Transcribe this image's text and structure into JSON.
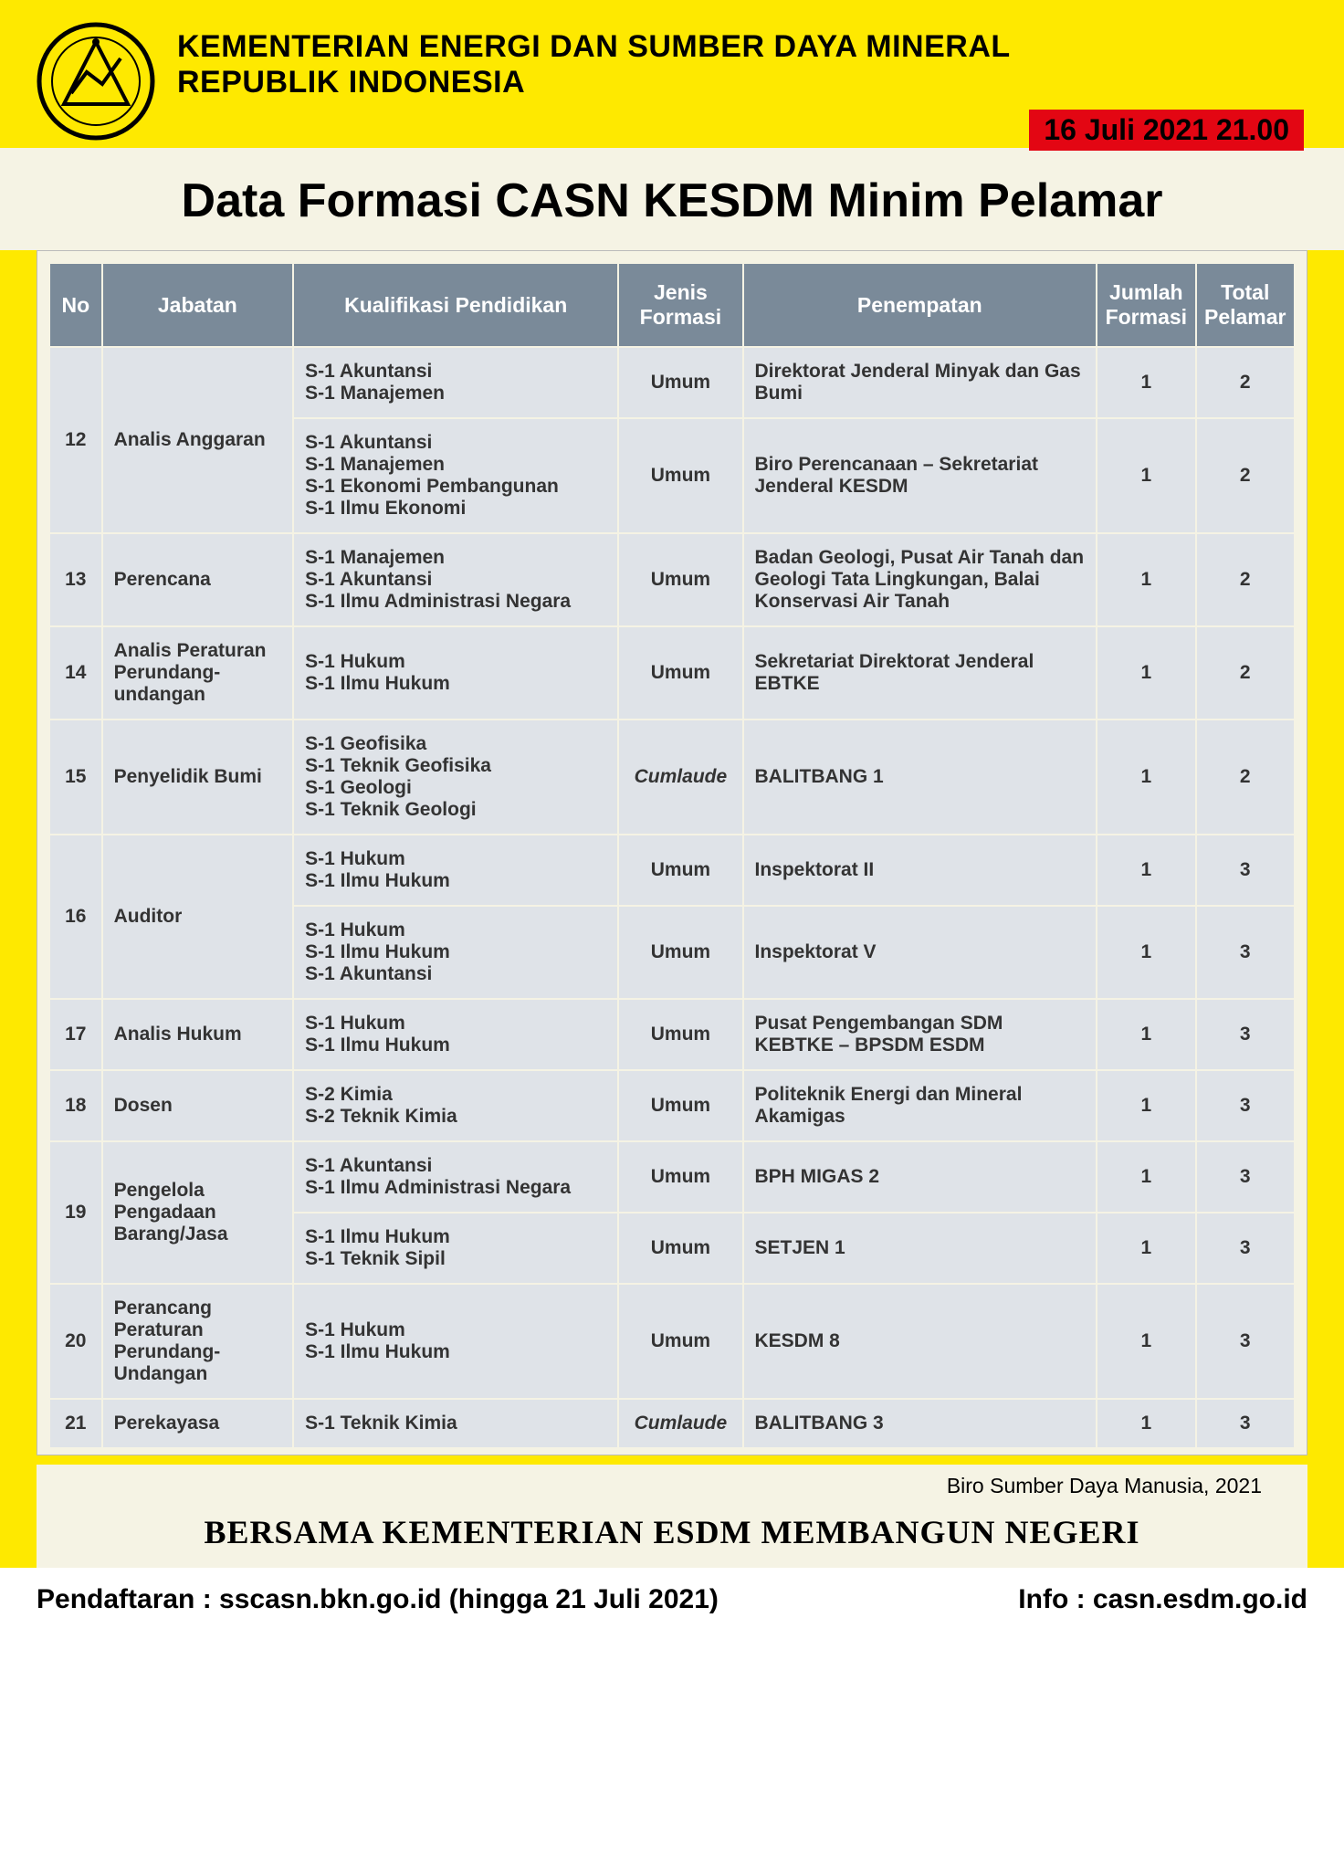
{
  "header": {
    "line1": "KEMENTERIAN ENERGI DAN SUMBER DAYA MINERAL",
    "line2": "REPUBLIK INDONESIA",
    "date_badge": "16 Juli 2021 21.00"
  },
  "title": "Data Formasi CASN KESDM Minim Pelamar",
  "table": {
    "columns": [
      "No",
      "Jabatan",
      "Kualifikasi Pendidikan",
      "Jenis Formasi",
      "Penempatan",
      "Jumlah Formasi",
      "Total Pelamar"
    ],
    "header_bg": "#7a8a99",
    "row_bg": "#dfe3e8",
    "rows": [
      {
        "no": "12",
        "no_rowspan": 2,
        "jabatan": "Analis Anggaran",
        "jab_rowspan": 2,
        "kual": "S-1 Akuntansi\nS-1 Manajemen",
        "jenis": "Umum",
        "jenis_italic": false,
        "pen": "Direktorat Jenderal Minyak dan Gas Bumi",
        "jml": "1",
        "tot": "2"
      },
      {
        "kual": "S-1 Akuntansi\nS-1 Manajemen\nS-1 Ekonomi Pembangunan\nS-1 Ilmu Ekonomi",
        "jenis": "Umum",
        "jenis_italic": false,
        "pen": "Biro Perencanaan – Sekretariat Jenderal KESDM",
        "jml": "1",
        "tot": "2"
      },
      {
        "no": "13",
        "jabatan": "Perencana",
        "kual": "S-1 Manajemen\nS-1 Akuntansi\nS-1 Ilmu Administrasi Negara",
        "jenis": "Umum",
        "jenis_italic": false,
        "pen": "Badan Geologi, Pusat Air Tanah dan Geologi Tata Lingkungan, Balai Konservasi Air Tanah",
        "jml": "1",
        "tot": "2"
      },
      {
        "no": "14",
        "jabatan": "Analis Peraturan Perundang-undangan",
        "kual": "S-1 Hukum\nS-1 Ilmu Hukum",
        "jenis": "Umum",
        "jenis_italic": false,
        "pen": "Sekretariat Direktorat Jenderal EBTKE",
        "jml": "1",
        "tot": "2"
      },
      {
        "no": "15",
        "jabatan": "Penyelidik Bumi",
        "kual": "S-1 Geofisika\nS-1 Teknik Geofisika\nS-1 Geologi\nS-1 Teknik Geologi",
        "jenis": "Cumlaude",
        "jenis_italic": true,
        "pen": "BALITBANG 1",
        "jml": "1",
        "tot": "2"
      },
      {
        "no": "16",
        "no_rowspan": 2,
        "jabatan": "Auditor",
        "jab_rowspan": 2,
        "kual": "S-1 Hukum\nS-1 Ilmu Hukum",
        "jenis": "Umum",
        "jenis_italic": false,
        "pen": "Inspektorat II",
        "jml": "1",
        "tot": "3"
      },
      {
        "kual": "S-1 Hukum\nS-1 Ilmu Hukum\nS-1 Akuntansi",
        "jenis": "Umum",
        "jenis_italic": false,
        "pen": "Inspektorat V",
        "jml": "1",
        "tot": "3"
      },
      {
        "no": "17",
        "jabatan": "Analis Hukum",
        "kual": "S-1 Hukum\nS-1 Ilmu Hukum",
        "jenis": "Umum",
        "jenis_italic": false,
        "pen": "Pusat Pengembangan SDM KEBTKE – BPSDM ESDM",
        "jml": "1",
        "tot": "3"
      },
      {
        "no": "18",
        "jabatan": "Dosen",
        "kual": "S-2 Kimia\nS-2 Teknik Kimia",
        "jenis": "Umum",
        "jenis_italic": false,
        "pen": "Politeknik Energi dan Mineral Akamigas",
        "jml": "1",
        "tot": "3"
      },
      {
        "no": "19",
        "no_rowspan": 2,
        "jabatan": "Pengelola Pengadaan Barang/Jasa",
        "jab_rowspan": 2,
        "kual": "S-1 Akuntansi\nS-1 Ilmu Administrasi Negara",
        "jenis": "Umum",
        "jenis_italic": false,
        "pen": "BPH MIGAS 2",
        "jml": "1",
        "tot": "3"
      },
      {
        "kual": "S-1 Ilmu Hukum\nS-1 Teknik Sipil",
        "jenis": "Umum",
        "jenis_italic": false,
        "pen": "SETJEN 1",
        "jml": "1",
        "tot": "3"
      },
      {
        "no": "20",
        "jabatan": "Perancang Peraturan Perundang-Undangan",
        "kual": "S-1 Hukum\nS-1 Ilmu Hukum",
        "jenis": "Umum",
        "jenis_italic": false,
        "pen": "KESDM 8",
        "jml": "1",
        "tot": "3"
      },
      {
        "no": "21",
        "jabatan": "Perekayasa",
        "kual": "S-1 Teknik Kimia",
        "jenis": "Cumlaude",
        "jenis_italic": true,
        "pen": "BALITBANG 3",
        "jml": "1",
        "tot": "3"
      }
    ]
  },
  "source": "Biro Sumber Daya Manusia, 2021",
  "slogan": "BERSAMA KEMENTERIAN ESDM MEMBANGUN NEGERI",
  "footer": {
    "left": "Pendaftaran : sscasn.bkn.go.id (hingga 21 Juli 2021)",
    "right": "Info : casn.esdm.go.id"
  },
  "logo_colors": {
    "outer": "#000000",
    "fill": "#fee900"
  }
}
